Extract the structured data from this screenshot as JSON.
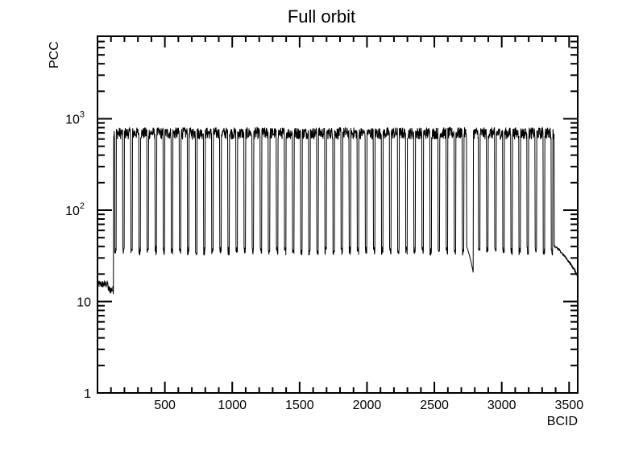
{
  "chart_data": {
    "type": "line",
    "title": "Full orbit",
    "xlabel": "BCID",
    "ylabel": "PCC",
    "xlim": [
      0,
      3564
    ],
    "ylim": [
      1,
      8000
    ],
    "yscale": "log",
    "grid": false,
    "line_color": "#000000",
    "x_ticks": [
      {
        "value": 500,
        "label": "500"
      },
      {
        "value": 1000,
        "label": "1000"
      },
      {
        "value": 1500,
        "label": "1500"
      },
      {
        "value": 2000,
        "label": "2000"
      },
      {
        "value": 2500,
        "label": "2500"
      },
      {
        "value": 3000,
        "label": "3000"
      },
      {
        "value": 3500,
        "label": "3500"
      }
    ],
    "y_ticks": [
      {
        "value": 1,
        "base": "1",
        "exp": ""
      },
      {
        "value": 10,
        "base": "10",
        "exp": ""
      },
      {
        "value": 100,
        "base": "10",
        "exp": "2"
      },
      {
        "value": 1000,
        "base": "10",
        "exp": "3"
      }
    ],
    "series": [
      {
        "bcid_ranges": [
          [
            0,
            80,
            14
          ],
          [
            80,
            120,
            12
          ],
          [
            120,
            3380,
            700
          ],
          [
            3380,
            3564,
            25
          ]
        ],
        "filled_level": 700,
        "gap_level": 40,
        "gap_level_train_end": 30,
        "abort_gap": [
          2740,
          2790
        ],
        "abort_gap_level": 20,
        "tail_end_level": 18,
        "train_start_bcid": 80,
        "train_end_bcid": 3390,
        "train_period_bcid": 60,
        "train_length_bcid": 48
      }
    ]
  }
}
